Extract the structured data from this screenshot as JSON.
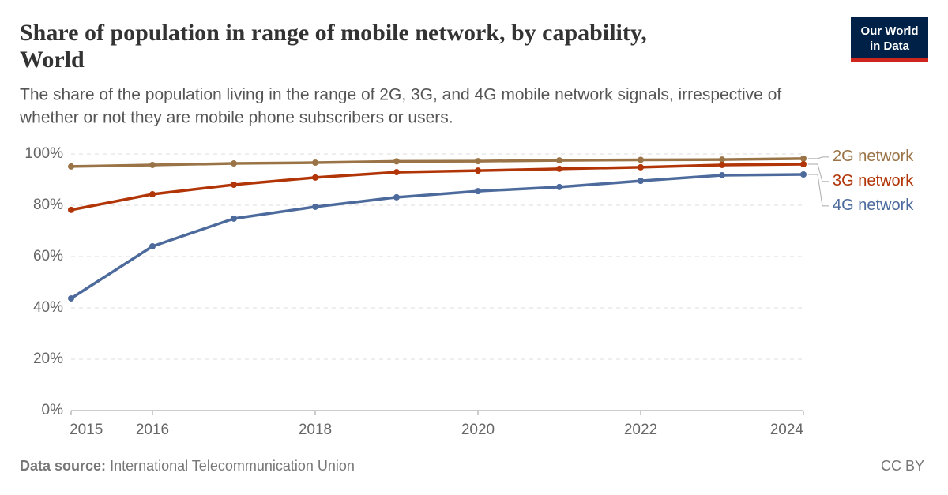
{
  "chart_data": {
    "type": "line",
    "title": "Share of population in range of mobile network, by capability,",
    "title_line_2": "World",
    "subtitle": "The share of the population living in the range of 2G, 3G, and 4G mobile network signals, irrespective of",
    "subtitle_line_2": "whether or not they are mobile phone subscribers or users.",
    "x": [
      2015,
      2016,
      2017,
      2018,
      2019,
      2020,
      2021,
      2022,
      2023,
      2024
    ],
    "series": [
      {
        "name": "2G network",
        "color": "#9a7447",
        "values": [
          95.1,
          95.7,
          96.3,
          96.6,
          97.1,
          97.2,
          97.5,
          97.7,
          97.8,
          98.2
        ]
      },
      {
        "name": "3G network",
        "color": "#b13507",
        "values": [
          78.2,
          84.3,
          88.0,
          90.8,
          92.9,
          93.5,
          94.2,
          94.8,
          95.7,
          96.0
        ]
      },
      {
        "name": "4G network",
        "color": "#4c6a9c",
        "values": [
          43.7,
          64.0,
          74.8,
          79.4,
          83.1,
          85.5,
          87.1,
          89.5,
          91.7,
          92.0
        ]
      }
    ],
    "xlim": [
      2015,
      2024
    ],
    "xticks": [
      2015,
      2016,
      2018,
      2020,
      2022,
      2024
    ],
    "ylim": [
      0,
      100
    ],
    "yticks": [
      {
        "value": 0,
        "label": "0%"
      },
      {
        "value": 20,
        "label": "20%"
      },
      {
        "value": 40,
        "label": "40%"
      },
      {
        "value": 60,
        "label": "60%"
      },
      {
        "value": 80,
        "label": "80%"
      },
      {
        "value": 100,
        "label": "100%"
      }
    ],
    "grid": true,
    "source_label": "Data source:",
    "source": "International Telecommunication Union",
    "license": "CC BY"
  },
  "logo": {
    "line_1": "Our World",
    "line_2": "in Data"
  }
}
